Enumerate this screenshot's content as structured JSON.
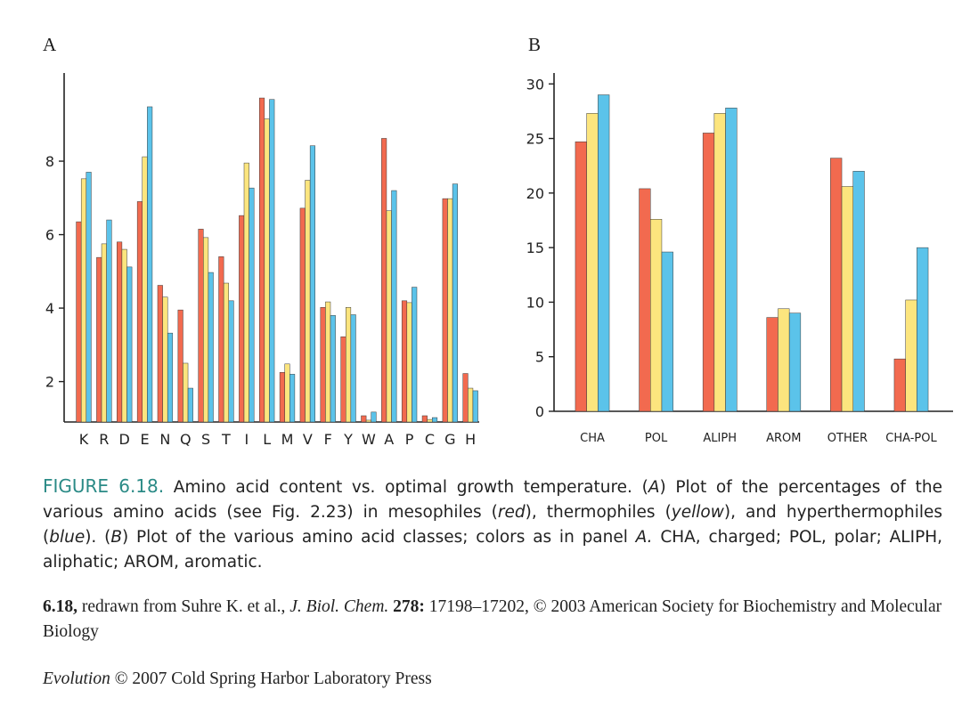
{
  "colors": {
    "mesophiles": "#f26a4f",
    "thermophiles": "#fce57e",
    "hyperthermophiles": "#5bc3ea",
    "axis": "#222222",
    "caption_label": "#2a8a86"
  },
  "panel_a_label": "A",
  "panel_b_label": "B",
  "chart_data": [
    {
      "type": "bar",
      "panel": "A",
      "categories": [
        "K",
        "R",
        "D",
        "E",
        "N",
        "Q",
        "S",
        "T",
        "I",
        "L",
        "M",
        "V",
        "F",
        "Y",
        "W",
        "A",
        "P",
        "C",
        "G",
        "H"
      ],
      "series": [
        {
          "color": "#f26a4f",
          "values": [
            6.35,
            5.38,
            5.8,
            6.9,
            4.62,
            3.95,
            6.15,
            5.4,
            6.52,
            9.72,
            2.25,
            6.72,
            4.02,
            3.22,
            1.07,
            8.62,
            4.2,
            1.07,
            6.98,
            2.22
          ]
        },
        {
          "color": "#fce57e",
          "values": [
            7.52,
            5.75,
            5.6,
            8.12,
            4.3,
            2.5,
            5.92,
            4.68,
            7.95,
            9.15,
            2.48,
            7.48,
            4.17,
            4.02,
            0.95,
            6.65,
            4.15,
            0.97,
            6.98,
            1.82
          ]
        },
        {
          "color": "#5bc3ea",
          "values": [
            7.7,
            6.4,
            5.12,
            9.48,
            3.32,
            1.82,
            4.97,
            4.2,
            7.27,
            9.68,
            2.2,
            8.42,
            3.8,
            3.82,
            1.17,
            7.2,
            4.57,
            1.02,
            7.38,
            1.75
          ]
        }
      ],
      "yticks": [
        2,
        4,
        6,
        8
      ],
      "ylim": [
        0.9,
        10.4
      ]
    },
    {
      "type": "bar",
      "panel": "B",
      "categories": [
        "CHA",
        "POL",
        "ALIPH",
        "AROM",
        "OTHER",
        "CHA-POL"
      ],
      "series": [
        {
          "color": "#f26a4f",
          "values": [
            24.7,
            20.4,
            25.5,
            8.6,
            23.2,
            4.8
          ]
        },
        {
          "color": "#fce57e",
          "values": [
            27.3,
            17.6,
            27.3,
            9.4,
            20.6,
            10.2
          ]
        },
        {
          "color": "#5bc3ea",
          "values": [
            29.0,
            14.6,
            27.8,
            9.0,
            22.0,
            15.0
          ]
        }
      ],
      "yticks": [
        0,
        5,
        10,
        15,
        20,
        25,
        30
      ],
      "ylim": [
        0,
        31
      ]
    }
  ],
  "caption": {
    "fig_label": "FIGURE 6.18.",
    "s1": " Amino acid content vs. optimal growth temperature. (",
    "a1": "A",
    "s2": ") Plot of the percentages of the various amino acids (see Fig. 2.23) in mesophiles (",
    "red": "red",
    "s3": "), thermophiles (",
    "yellow": "yellow",
    "s4": "), and hyperthermophiles (",
    "blue": "blue",
    "s5": "). (",
    "b1": "B",
    "s6": ") Plot of the various amino acid classes; colors as in panel ",
    "a2": "A.",
    "s7": " CHA, charged; POL, polar; ALIPH, aliphatic; AROM, aromatic."
  },
  "credit": {
    "num": "6.18,",
    "s1": " redrawn from Suhre K. et al., ",
    "journal": "J. Biol. Chem.",
    "space": " ",
    "vol": "278:",
    "s2": " 17198–17202, © 2003 American Society for Biochemistry and Molecular Biology"
  },
  "copyright": {
    "book": "Evolution",
    "rest": " © 2007 Cold Spring Harbor Laboratory Press"
  }
}
